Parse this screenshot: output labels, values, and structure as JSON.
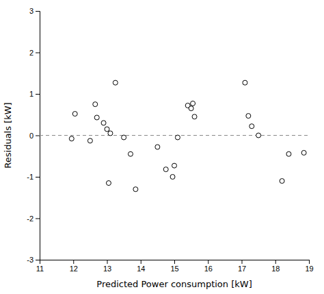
{
  "chart_data": {
    "type": "scatter",
    "xlabel": "Predicted Power consumption [kW]",
    "ylabel": "Residuals [kW]",
    "x": [
      11.95,
      12.05,
      12.5,
      12.65,
      12.7,
      12.9,
      13.0,
      13.05,
      13.1,
      13.25,
      13.5,
      13.7,
      13.85,
      14.5,
      14.75,
      14.95,
      15.0,
      15.1,
      15.4,
      15.5,
      15.55,
      15.6,
      17.1,
      17.2,
      17.3,
      17.5,
      18.2,
      18.4,
      18.85
    ],
    "values": [
      -0.08,
      0.52,
      -0.13,
      0.75,
      0.43,
      0.3,
      0.15,
      -1.15,
      0.05,
      1.27,
      -0.05,
      -0.45,
      -1.3,
      -0.28,
      -0.82,
      -1.0,
      -0.73,
      -0.05,
      0.72,
      0.65,
      0.77,
      0.45,
      1.27,
      0.47,
      0.22,
      0.0,
      -1.1,
      -0.45,
      -0.42
    ],
    "xlim": [
      11,
      19
    ],
    "ylim": [
      -3,
      3
    ],
    "xticks": [
      11,
      12,
      13,
      14,
      15,
      16,
      17,
      18,
      19
    ],
    "yticks": [
      -3,
      -2,
      -1,
      0,
      1,
      2,
      3
    ],
    "marker": "open-circle",
    "color": "black",
    "hline": {
      "y": 0,
      "color": "#888888",
      "line_style": "dashed"
    },
    "grid": false
  }
}
